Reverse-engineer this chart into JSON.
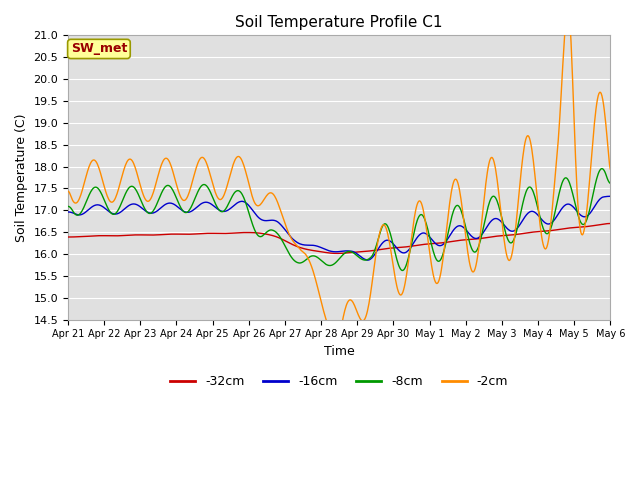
{
  "title": "Soil Temperature Profile C1",
  "xlabel": "Time",
  "ylabel": "Soil Temperature (C)",
  "ylim": [
    14.5,
    21.0
  ],
  "yticks": [
    14.5,
    15.0,
    15.5,
    16.0,
    16.5,
    17.0,
    17.5,
    18.0,
    18.5,
    19.0,
    19.5,
    20.0,
    20.5,
    21.0
  ],
  "legend_label": "SW_met",
  "series_labels": [
    "-32cm",
    "-16cm",
    "-8cm",
    "-2cm"
  ],
  "series_colors": [
    "#cc0000",
    "#0000cc",
    "#009900",
    "#ff8c00"
  ],
  "annotation_box_color": "#ffff99",
  "annotation_text_color": "#990000",
  "annotation_edge_color": "#999900"
}
